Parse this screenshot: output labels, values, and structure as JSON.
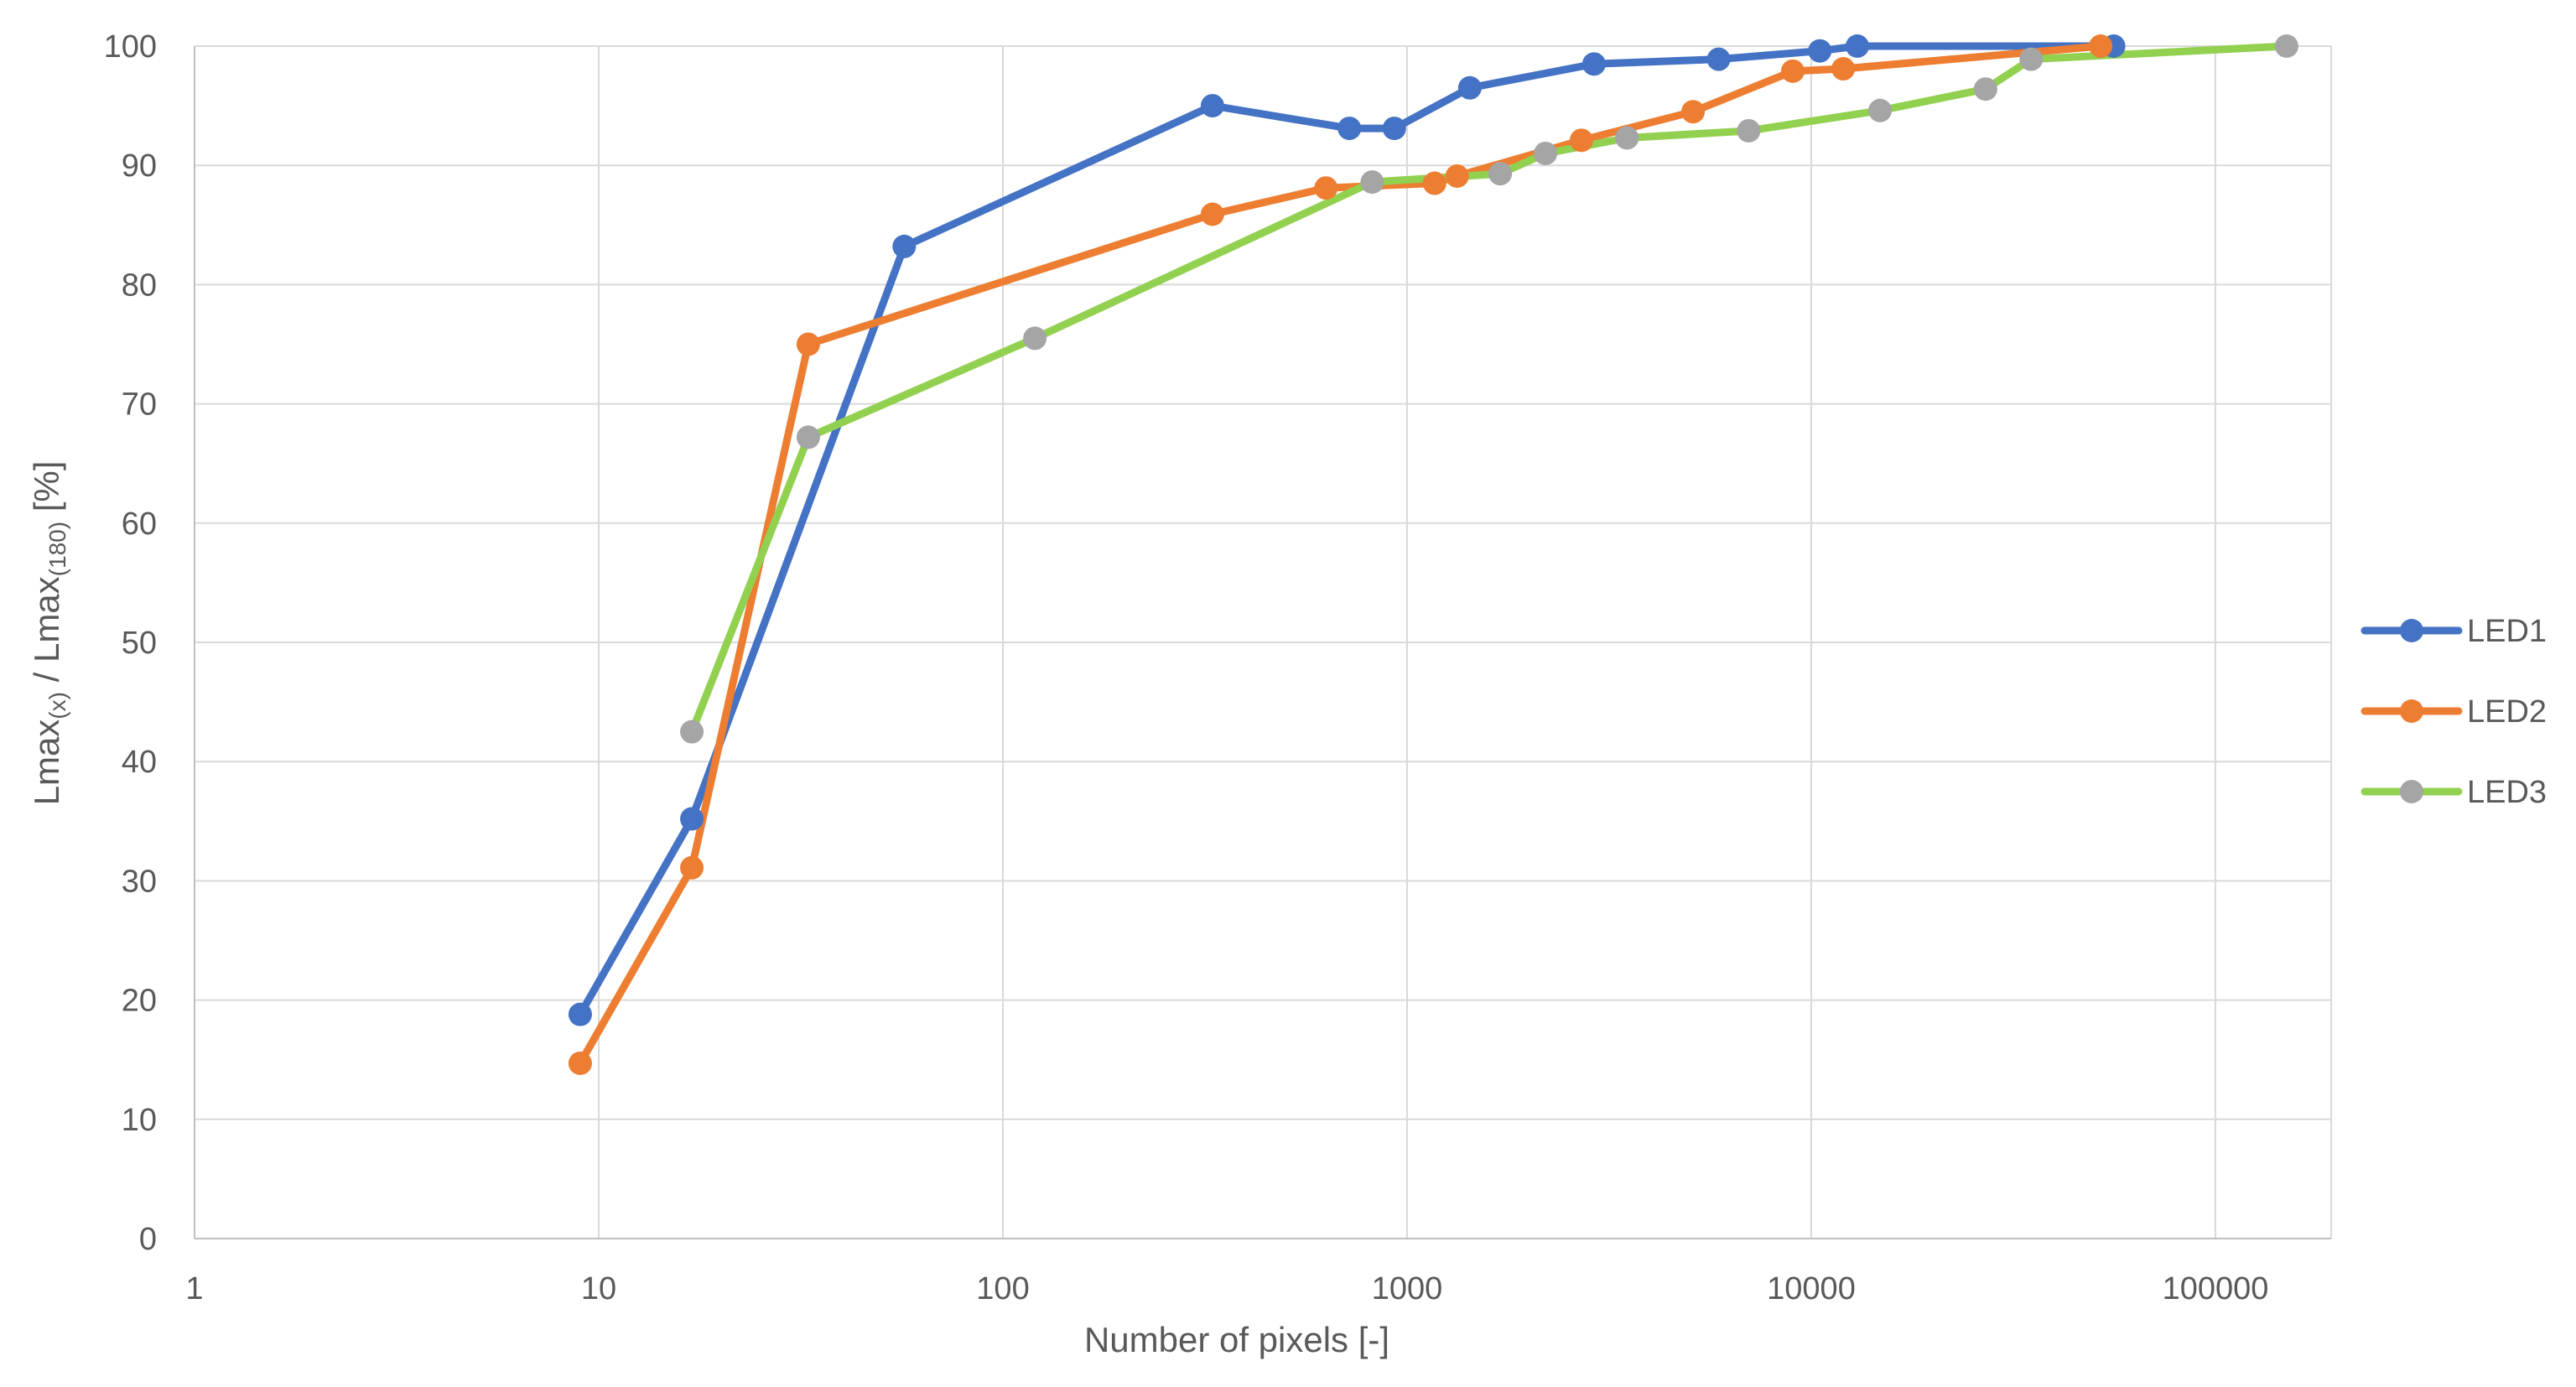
{
  "chart_data": {
    "type": "line",
    "title": "",
    "xlabel": "Number of pixels [-]",
    "ylabel": {
      "parts": [
        "Lmax",
        "(x)",
        " / Lmax",
        "(180)",
        " [%]"
      ]
    },
    "x_scale": "log",
    "xlim": [
      1,
      150000
    ],
    "ylim": [
      0,
      100
    ],
    "x_ticks": [
      1,
      10,
      100,
      1000,
      10000,
      100000
    ],
    "x_tick_labels": [
      "1",
      "10",
      "100",
      "1000",
      "10000",
      "100000"
    ],
    "y_ticks": [
      0,
      10,
      20,
      30,
      40,
      50,
      60,
      70,
      80,
      90,
      100
    ],
    "y_tick_labels": [
      "0",
      "10",
      "20",
      "30",
      "40",
      "50",
      "60",
      "70",
      "80",
      "90",
      "100"
    ],
    "grid": true,
    "legend_position": "right",
    "series": [
      {
        "name": "LED1",
        "line_color": "#4472C4",
        "marker_color": "#4472C4",
        "x": [
          9,
          17,
          57,
          330,
          720,
          930,
          1430,
          2900,
          5900,
          10500,
          13000,
          56000
        ],
        "y": [
          18.8,
          35.2,
          83.2,
          95.0,
          93.1,
          93.1,
          96.5,
          98.5,
          98.9,
          99.6,
          100.0,
          100.0
        ]
      },
      {
        "name": "LED2",
        "line_color": "#ED7D31",
        "marker_color": "#ED7D31",
        "x": [
          9,
          17,
          33,
          330,
          630,
          1170,
          1330,
          2700,
          5100,
          9000,
          12000,
          52000
        ],
        "y": [
          14.7,
          31.1,
          75.0,
          85.9,
          88.1,
          88.5,
          89.1,
          92.1,
          94.5,
          97.9,
          98.1,
          100.0
        ]
      },
      {
        "name": "LED3",
        "line_color": "#92D050",
        "marker_color": "#A5A5A5",
        "x": [
          17,
          33,
          120,
          820,
          1700,
          2200,
          3500,
          7000,
          14800,
          27000,
          35000,
          150000
        ],
        "y": [
          42.5,
          67.2,
          75.5,
          88.6,
          89.3,
          91.0,
          92.3,
          92.9,
          94.6,
          96.4,
          98.9,
          100.0
        ]
      }
    ]
  }
}
